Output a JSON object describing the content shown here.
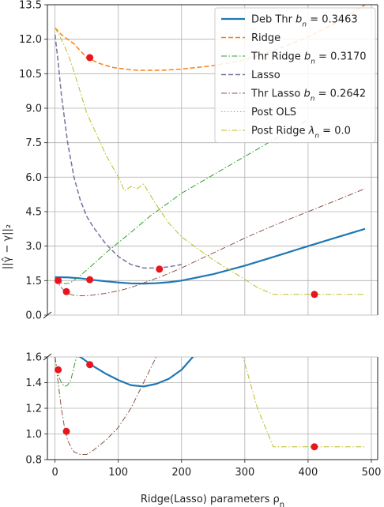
{
  "chart_data": {
    "type": "line",
    "xlabel": "Ridge(Lasso) parameters ρ",
    "xlabel_sub": "n",
    "ylabel": "||γ̂ − γ||₂",
    "xlim": [
      -12,
      510
    ],
    "x_ticks": [
      "0",
      "100",
      "200",
      "300",
      "400",
      "500"
    ],
    "x_tick_values": [
      0,
      100,
      200,
      300,
      400,
      500
    ],
    "grid": true,
    "legend_position": "top-right",
    "panels": [
      {
        "name": "upper",
        "ylim": [
          0,
          13.5
        ],
        "y_ticks": [
          "0.0",
          "1.5",
          "3.0",
          "4.5",
          "6.0",
          "7.5",
          "9.0",
          "10.5",
          "12.0",
          "13.5"
        ],
        "y_tick_values": [
          0,
          1.5,
          3,
          4.5,
          6,
          7.5,
          9,
          10.5,
          12,
          13.5
        ]
      },
      {
        "name": "lower",
        "ylim": [
          0.8,
          1.6
        ],
        "y_ticks": [
          "0.8",
          "1.0",
          "1.2",
          "1.4",
          "1.6"
        ],
        "y_tick_values": [
          0.8,
          1.0,
          1.2,
          1.4,
          1.6
        ]
      }
    ],
    "series": [
      {
        "name": "Deb Thr",
        "name_sub": "n",
        "name_value": " = 0.3463",
        "color": "#1f77b4",
        "style": "solid",
        "width": 2.2,
        "x": [
          0,
          20,
          40,
          60,
          80,
          100,
          120,
          140,
          160,
          180,
          200,
          250,
          300,
          350,
          400,
          450,
          490
        ],
        "y": [
          1.65,
          1.64,
          1.6,
          1.53,
          1.47,
          1.42,
          1.38,
          1.37,
          1.39,
          1.43,
          1.5,
          1.78,
          2.15,
          2.57,
          3.0,
          3.42,
          3.75
        ]
      },
      {
        "name": "Ridge",
        "color": "#ff7f0e",
        "style": "dashed",
        "width": 1.5,
        "x": [
          0,
          10,
          30,
          50,
          70,
          90,
          110,
          130,
          150,
          170,
          200,
          250,
          300,
          350,
          400,
          450,
          490
        ],
        "y": [
          12.5,
          12.2,
          11.8,
          11.2,
          10.95,
          10.78,
          10.7,
          10.65,
          10.65,
          10.65,
          10.7,
          10.85,
          11.1,
          11.55,
          12.1,
          12.8,
          13.5
        ]
      },
      {
        "name": "Thr Ridge",
        "name_sub": "n",
        "name_value": " = 0.3170",
        "color": "#2ca02c",
        "style": "dashdot",
        "width": 1.0,
        "x": [
          0,
          5,
          10,
          15,
          20,
          25,
          30,
          40,
          60,
          80,
          100,
          120,
          150,
          200,
          250,
          300,
          350,
          400
        ],
        "y": [
          1.6,
          1.46,
          1.4,
          1.37,
          1.38,
          1.42,
          1.52,
          1.72,
          2.2,
          2.7,
          3.15,
          3.6,
          4.3,
          5.3,
          6.1,
          6.9,
          7.7,
          8.5
        ]
      },
      {
        "name": "Lasso",
        "color": "#7f6f9f",
        "style": "dashed",
        "width": 1.5,
        "x": [
          0,
          5,
          10,
          20,
          30,
          40,
          50,
          60,
          80,
          100,
          120,
          140,
          160,
          180,
          200
        ],
        "y": [
          12.2,
          11.0,
          9.6,
          7.5,
          6.0,
          5.0,
          4.3,
          3.85,
          3.1,
          2.55,
          2.2,
          2.05,
          2.05,
          2.1,
          2.2
        ]
      },
      {
        "name": "Thr Lasso",
        "name_sub": "n",
        "name_value": " = 0.2642",
        "color": "#8c564b",
        "style": "dashdot",
        "width": 1.0,
        "x": [
          0,
          5,
          10,
          15,
          20,
          25,
          30,
          40,
          50,
          60,
          80,
          100,
          120,
          140,
          170,
          200,
          250,
          300,
          350,
          400,
          450,
          490
        ],
        "y": [
          1.6,
          1.4,
          1.2,
          1.05,
          0.95,
          0.9,
          0.86,
          0.84,
          0.84,
          0.87,
          0.95,
          1.05,
          1.2,
          1.4,
          1.7,
          2.05,
          2.7,
          3.35,
          3.95,
          4.5,
          5.05,
          5.5
        ]
      },
      {
        "name": "Post OLS",
        "color": "#e377c2",
        "style": "dotted",
        "width": 1.0,
        "x": [],
        "y": []
      },
      {
        "name": "Post Ridge",
        "name_sub": "n",
        "name_value": " = 0.0",
        "name_symbol": "λ",
        "color": "#bcbd22",
        "style": "dashdot",
        "width": 1.0,
        "x": [
          0,
          10,
          20,
          30,
          40,
          50,
          60,
          80,
          100,
          110,
          120,
          130,
          140,
          160,
          180,
          200,
          220,
          250,
          280,
          300,
          320,
          345,
          400,
          450,
          490
        ],
        "y": [
          12.5,
          12.0,
          11.4,
          10.6,
          9.7,
          8.8,
          8.2,
          7.0,
          6.0,
          5.4,
          5.6,
          5.5,
          5.7,
          4.8,
          4.0,
          3.4,
          3.0,
          2.4,
          1.9,
          1.55,
          1.2,
          0.9,
          0.9,
          0.9,
          0.9
        ]
      }
    ],
    "markers": {
      "color": "#e8141e",
      "points": [
        {
          "x": 5,
          "y": 1.5
        },
        {
          "x": 18,
          "y": 1.02
        },
        {
          "x": 55,
          "y": 1.54
        },
        {
          "x": 55,
          "y": 11.2
        },
        {
          "x": 165,
          "y": 2.0
        },
        {
          "x": 410,
          "y": 0.9
        }
      ]
    },
    "legend_label_prefix": "b"
  }
}
